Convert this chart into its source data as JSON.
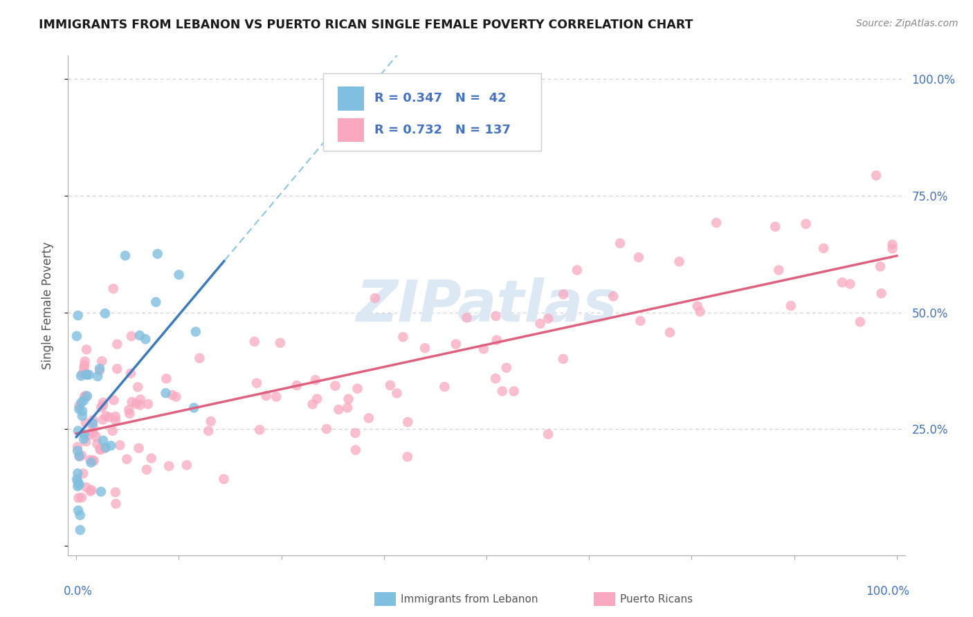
{
  "title": "IMMIGRANTS FROM LEBANON VS PUERTO RICAN SINGLE FEMALE POVERTY CORRELATION CHART",
  "source": "Source: ZipAtlas.com",
  "ylabel": "Single Female Poverty",
  "legend_blue_r": "R = 0.347",
  "legend_blue_n": "N =  42",
  "legend_pink_r": "R = 0.732",
  "legend_pink_n": "N = 137",
  "watermark_text": "ZIPatlas",
  "blue_scatter_color": "#7fbfdf",
  "pink_scatter_color": "#f9a8c0",
  "blue_line_color": "#3a7abf",
  "pink_line_color": "#e06080",
  "blue_dash_color": "#7fbfdf",
  "title_color": "#1a1a1a",
  "axis_label_color": "#4472c4",
  "ylabel_color": "#555555",
  "grid_color": "#cccccc",
  "background_color": "#ffffff",
  "legend_edge_color": "#cccccc",
  "source_color": "#888888",
  "watermark_color": "#dce9f5"
}
